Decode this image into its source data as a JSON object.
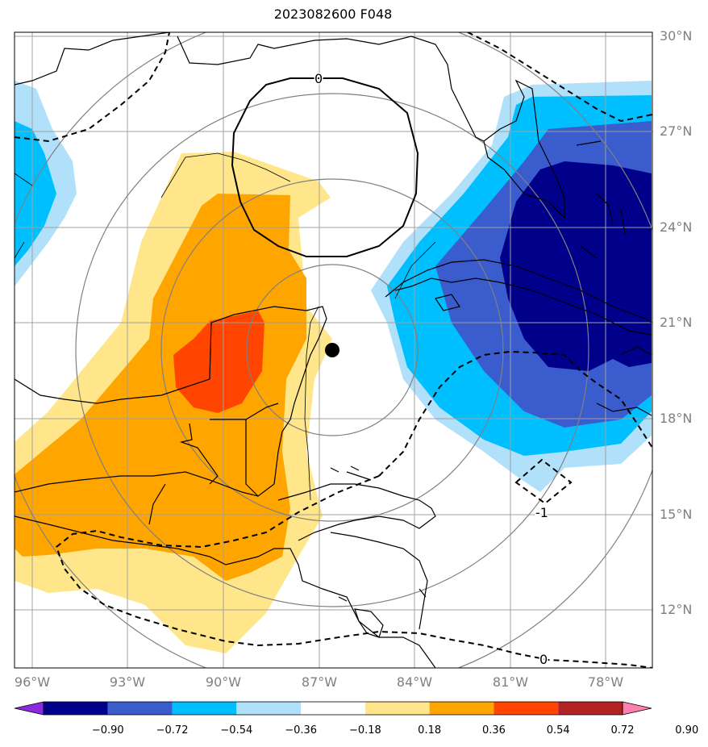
{
  "title": "2023082600 F048",
  "lat_labels": [
    "30°N",
    "27°N",
    "24°N",
    "21°N",
    "18°N",
    "15°N",
    "12°N"
  ],
  "lon_labels": [
    "96°W",
    "93°W",
    "90°W",
    "87°W",
    "84°W",
    "81°W",
    "78°W"
  ],
  "contour_labels": [
    "0",
    "-1",
    "0"
  ],
  "colorbar": {
    "colors": [
      "#8a2be2",
      "#00008b",
      "#3a5ccd",
      "#00bfff",
      "#b0e0fa",
      "#ffffff",
      "#ffe68a",
      "#ffa500",
      "#ff4500",
      "#b22222",
      "#ff80aa"
    ],
    "labels": [
      "−0.90",
      "−0.72",
      "−0.54",
      "−0.36",
      "−0.18",
      "0.18",
      "0.36",
      "0.54",
      "0.72",
      "0.90"
    ]
  },
  "colors": {
    "grid": "#a0a0a0",
    "range_rings": "#808080",
    "coast": "#000000"
  },
  "marker": {
    "type": "storm-center-dot"
  }
}
